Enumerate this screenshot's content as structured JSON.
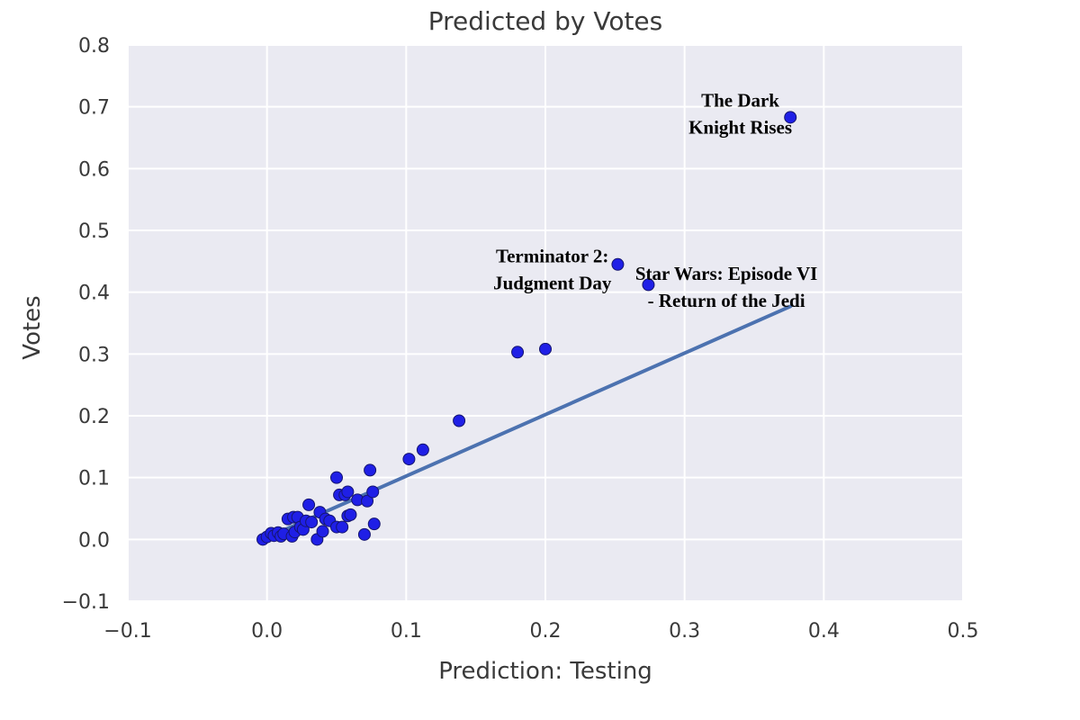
{
  "chart_data": {
    "type": "scatter",
    "title": "Predicted by Votes",
    "xlabel": "Prediction: Testing",
    "ylabel": "Votes",
    "xlim": [
      -0.1,
      0.5
    ],
    "ylim": [
      -0.1,
      0.8
    ],
    "xticks": [
      -0.1,
      0.0,
      0.1,
      0.2,
      0.3,
      0.4,
      0.5
    ],
    "yticks": [
      -0.1,
      0.0,
      0.1,
      0.2,
      0.3,
      0.4,
      0.5,
      0.6,
      0.7,
      0.8
    ],
    "xtick_labels": [
      "−0.1",
      "0.0",
      "0.1",
      "0.2",
      "0.3",
      "0.4",
      "0.5"
    ],
    "ytick_labels": [
      "−0.1",
      "0.0",
      "0.1",
      "0.2",
      "0.3",
      "0.4",
      "0.5",
      "0.6",
      "0.7",
      "0.8"
    ],
    "grid": true,
    "colors": {
      "background": "#eaeaf2",
      "grid": "#ffffff",
      "points": "#1f1fe6",
      "point_edge": "#151570",
      "fit_line": "#4c72b0"
    },
    "points": [
      {
        "x": -0.003,
        "y": 0.0
      },
      {
        "x": 0.0,
        "y": 0.004
      },
      {
        "x": 0.003,
        "y": 0.01
      },
      {
        "x": 0.005,
        "y": 0.006
      },
      {
        "x": 0.008,
        "y": 0.011
      },
      {
        "x": 0.01,
        "y": 0.005
      },
      {
        "x": 0.012,
        "y": 0.009
      },
      {
        "x": 0.015,
        "y": 0.033
      },
      {
        "x": 0.018,
        "y": 0.005
      },
      {
        "x": 0.019,
        "y": 0.036
      },
      {
        "x": 0.02,
        "y": 0.012
      },
      {
        "x": 0.022,
        "y": 0.036
      },
      {
        "x": 0.024,
        "y": 0.02
      },
      {
        "x": 0.026,
        "y": 0.016
      },
      {
        "x": 0.028,
        "y": 0.03
      },
      {
        "x": 0.03,
        "y": 0.056
      },
      {
        "x": 0.032,
        "y": 0.028
      },
      {
        "x": 0.036,
        "y": 0.0
      },
      {
        "x": 0.038,
        "y": 0.044
      },
      {
        "x": 0.04,
        "y": 0.013
      },
      {
        "x": 0.042,
        "y": 0.033
      },
      {
        "x": 0.045,
        "y": 0.03
      },
      {
        "x": 0.05,
        "y": 0.02
      },
      {
        "x": 0.05,
        "y": 0.1
      },
      {
        "x": 0.052,
        "y": 0.072
      },
      {
        "x": 0.054,
        "y": 0.02
      },
      {
        "x": 0.056,
        "y": 0.072
      },
      {
        "x": 0.058,
        "y": 0.077
      },
      {
        "x": 0.058,
        "y": 0.038
      },
      {
        "x": 0.06,
        "y": 0.04
      },
      {
        "x": 0.065,
        "y": 0.064
      },
      {
        "x": 0.07,
        "y": 0.008
      },
      {
        "x": 0.072,
        "y": 0.062
      },
      {
        "x": 0.074,
        "y": 0.112
      },
      {
        "x": 0.076,
        "y": 0.077
      },
      {
        "x": 0.077,
        "y": 0.025
      },
      {
        "x": 0.102,
        "y": 0.13
      },
      {
        "x": 0.112,
        "y": 0.145
      },
      {
        "x": 0.138,
        "y": 0.192
      },
      {
        "x": 0.18,
        "y": 0.303
      },
      {
        "x": 0.2,
        "y": 0.308
      },
      {
        "x": 0.252,
        "y": 0.445
      },
      {
        "x": 0.274,
        "y": 0.412
      },
      {
        "x": 0.376,
        "y": 0.683
      }
    ],
    "fit_line": {
      "x": [
        0.0,
        0.376
      ],
      "y": [
        0.003,
        0.377
      ]
    },
    "annotations": [
      {
        "lines": [
          "The Dark",
          "Knight Rises"
        ],
        "x": 0.34,
        "y": 0.7
      },
      {
        "lines": [
          "Terminator 2:",
          "Judgment Day"
        ],
        "x": 0.205,
        "y": 0.448
      },
      {
        "lines": [
          "Star Wars: Episode VI",
          "- Return of the Jedi"
        ],
        "x": 0.33,
        "y": 0.42
      }
    ]
  }
}
